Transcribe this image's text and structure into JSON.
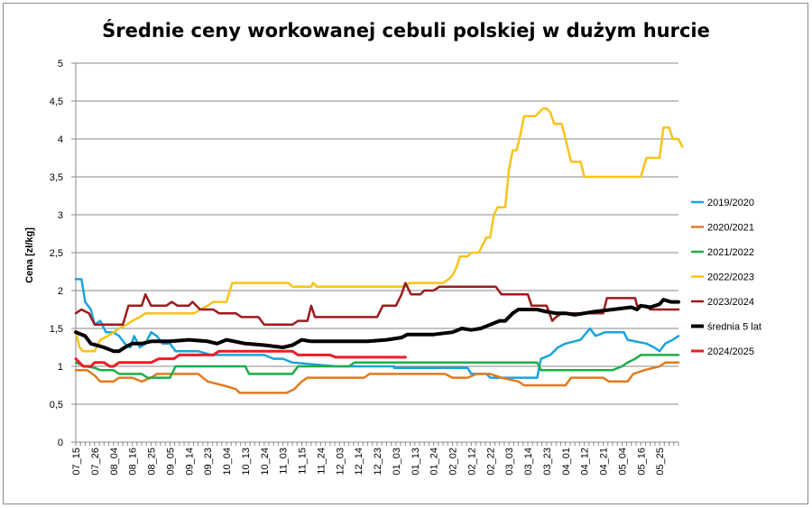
{
  "chart_data": {
    "type": "line",
    "title": "Średnie ceny workowanej cebuli polskiej w dużym hurcie",
    "ylabel": "Cena [zł/kg]",
    "xlabel": "",
    "ylim": [
      0,
      5
    ],
    "yticks": [
      "0",
      "0,5",
      "1",
      "1,5",
      "2",
      "2,5",
      "3",
      "3,5",
      "4",
      "4,5",
      "5"
    ],
    "grid": true,
    "legend_position": "right",
    "categories": [
      "07_15",
      "07_26",
      "08_04",
      "08_16",
      "08_25",
      "09_05",
      "09_14",
      "09_23",
      "10_04",
      "10_13",
      "10_24",
      "11_03",
      "11_15",
      "11_24",
      "12_03",
      "12_14",
      "12_23",
      "01_03",
      "01_13",
      "01_24",
      "02_02",
      "02_12",
      "02_22",
      "03_03",
      "03_14",
      "03_23",
      "04_01",
      "04_12",
      "04_21",
      "05_04",
      "05_16",
      "05_25"
    ],
    "series": [
      {
        "name": "2019/2020",
        "color": "#1aa3dc",
        "width": 2.5,
        "points": [
          [
            0,
            2.15
          ],
          [
            0.3,
            2.15
          ],
          [
            0.5,
            1.85
          ],
          [
            0.8,
            1.75
          ],
          [
            1.0,
            1.55
          ],
          [
            1.3,
            1.6
          ],
          [
            1.6,
            1.45
          ],
          [
            2.0,
            1.45
          ],
          [
            2.3,
            1.4
          ],
          [
            2.6,
            1.3
          ],
          [
            2.9,
            1.25
          ],
          [
            3.1,
            1.4
          ],
          [
            3.4,
            1.25
          ],
          [
            3.7,
            1.3
          ],
          [
            4.0,
            1.45
          ],
          [
            4.3,
            1.4
          ],
          [
            4.6,
            1.3
          ],
          [
            5.0,
            1.3
          ],
          [
            5.3,
            1.2
          ],
          [
            6.5,
            1.2
          ],
          [
            7.2,
            1.15
          ],
          [
            10.0,
            1.15
          ],
          [
            10.5,
            1.1
          ],
          [
            11.0,
            1.1
          ],
          [
            11.5,
            1.05
          ],
          [
            13.8,
            1.0
          ],
          [
            15.0,
            1.0
          ],
          [
            16.0,
            1.0
          ],
          [
            16.9,
            1.0
          ],
          [
            16.9,
            0.98
          ],
          [
            20.8,
            0.98
          ],
          [
            21.0,
            0.9
          ],
          [
            21.8,
            0.9
          ],
          [
            22.0,
            0.85
          ],
          [
            24.5,
            0.85
          ],
          [
            24.7,
            1.1
          ],
          [
            25.2,
            1.15
          ],
          [
            25.6,
            1.25
          ],
          [
            26.0,
            1.3
          ],
          [
            26.8,
            1.35
          ],
          [
            27.3,
            1.5
          ],
          [
            27.6,
            1.4
          ],
          [
            28.1,
            1.45
          ],
          [
            29.1,
            1.45
          ],
          [
            29.3,
            1.35
          ],
          [
            30.3,
            1.3
          ],
          [
            30.7,
            1.25
          ],
          [
            31.0,
            1.2
          ],
          [
            31.3,
            1.3
          ],
          [
            31.7,
            1.35
          ],
          [
            32.0,
            1.4
          ]
        ]
      },
      {
        "name": "2020/2021",
        "color": "#e07b20",
        "width": 2.5,
        "points": [
          [
            0,
            0.95
          ],
          [
            0.6,
            0.95
          ],
          [
            1.0,
            0.88
          ],
          [
            1.3,
            0.8
          ],
          [
            2.0,
            0.8
          ],
          [
            2.3,
            0.85
          ],
          [
            3.0,
            0.85
          ],
          [
            3.5,
            0.8
          ],
          [
            4.0,
            0.85
          ],
          [
            4.3,
            0.9
          ],
          [
            6.5,
            0.9
          ],
          [
            7.0,
            0.8
          ],
          [
            7.8,
            0.75
          ],
          [
            8.5,
            0.7
          ],
          [
            8.7,
            0.65
          ],
          [
            11.2,
            0.65
          ],
          [
            11.6,
            0.7
          ],
          [
            12.0,
            0.8
          ],
          [
            12.3,
            0.85
          ],
          [
            15.3,
            0.85
          ],
          [
            15.6,
            0.9
          ],
          [
            19.6,
            0.9
          ],
          [
            20.0,
            0.85
          ],
          [
            20.8,
            0.85
          ],
          [
            21.3,
            0.9
          ],
          [
            22.0,
            0.9
          ],
          [
            22.6,
            0.85
          ],
          [
            23.5,
            0.8
          ],
          [
            23.8,
            0.75
          ],
          [
            26.0,
            0.75
          ],
          [
            26.3,
            0.85
          ],
          [
            28.0,
            0.85
          ],
          [
            28.3,
            0.8
          ],
          [
            29.3,
            0.8
          ],
          [
            29.6,
            0.9
          ],
          [
            30.2,
            0.95
          ],
          [
            31.0,
            1.0
          ],
          [
            31.3,
            1.05
          ],
          [
            32.0,
            1.05
          ]
        ]
      },
      {
        "name": "2021/2022",
        "color": "#1cae48",
        "width": 2.5,
        "points": [
          [
            0,
            1.05
          ],
          [
            0.5,
            1.0
          ],
          [
            1.0,
            0.98
          ],
          [
            1.3,
            0.95
          ],
          [
            2.0,
            0.95
          ],
          [
            2.3,
            0.9
          ],
          [
            3.5,
            0.9
          ],
          [
            3.8,
            0.85
          ],
          [
            5.0,
            0.85
          ],
          [
            5.3,
            1.0
          ],
          [
            9.0,
            1.0
          ],
          [
            9.2,
            0.9
          ],
          [
            11.5,
            0.9
          ],
          [
            11.8,
            1.0
          ],
          [
            14.5,
            1.0
          ],
          [
            14.8,
            1.05
          ],
          [
            24.5,
            1.05
          ],
          [
            24.7,
            0.95
          ],
          [
            28.5,
            0.95
          ],
          [
            29.0,
            1.0
          ],
          [
            29.3,
            1.05
          ],
          [
            29.7,
            1.1
          ],
          [
            30.0,
            1.15
          ],
          [
            32.0,
            1.15
          ]
        ]
      },
      {
        "name": "2022/2023",
        "color": "#f7c31a",
        "width": 2.5,
        "points": [
          [
            0,
            1.45
          ],
          [
            0.2,
            1.25
          ],
          [
            0.4,
            1.2
          ],
          [
            1.0,
            1.2
          ],
          [
            1.3,
            1.35
          ],
          [
            1.7,
            1.4
          ],
          [
            2.0,
            1.45
          ],
          [
            2.3,
            1.5
          ],
          [
            2.7,
            1.55
          ],
          [
            3.0,
            1.6
          ],
          [
            3.4,
            1.65
          ],
          [
            3.7,
            1.7
          ],
          [
            6.3,
            1.7
          ],
          [
            6.6,
            1.75
          ],
          [
            7.0,
            1.8
          ],
          [
            7.3,
            1.85
          ],
          [
            8.0,
            1.85
          ],
          [
            8.3,
            2.1
          ],
          [
            11.3,
            2.1
          ],
          [
            11.5,
            2.05
          ],
          [
            12.5,
            2.05
          ],
          [
            12.6,
            2.1
          ],
          [
            12.8,
            2.05
          ],
          [
            17.5,
            2.05
          ],
          [
            17.7,
            2.1
          ],
          [
            19.5,
            2.1
          ],
          [
            19.8,
            2.15
          ],
          [
            20.0,
            2.2
          ],
          [
            20.2,
            2.3
          ],
          [
            20.4,
            2.45
          ],
          [
            20.8,
            2.45
          ],
          [
            21.0,
            2.5
          ],
          [
            21.4,
            2.5
          ],
          [
            21.6,
            2.6
          ],
          [
            21.8,
            2.7
          ],
          [
            22.0,
            2.7
          ],
          [
            22.2,
            3.0
          ],
          [
            22.4,
            3.1
          ],
          [
            22.8,
            3.1
          ],
          [
            23.0,
            3.6
          ],
          [
            23.2,
            3.85
          ],
          [
            23.4,
            3.85
          ],
          [
            23.6,
            4.05
          ],
          [
            23.8,
            4.3
          ],
          [
            24.4,
            4.3
          ],
          [
            24.6,
            4.35
          ],
          [
            24.8,
            4.4
          ],
          [
            25.0,
            4.4
          ],
          [
            25.2,
            4.35
          ],
          [
            25.4,
            4.2
          ],
          [
            25.8,
            4.2
          ],
          [
            26.0,
            4.0
          ],
          [
            26.3,
            3.7
          ],
          [
            26.8,
            3.7
          ],
          [
            27.0,
            3.5
          ],
          [
            30.0,
            3.5
          ],
          [
            30.3,
            3.75
          ],
          [
            31.0,
            3.75
          ],
          [
            31.2,
            4.15
          ],
          [
            31.5,
            4.15
          ],
          [
            31.7,
            4.0
          ],
          [
            32.0,
            4.0
          ],
          [
            32.2,
            3.9
          ]
        ]
      },
      {
        "name": "2023/2024",
        "color": "#9b1b1e",
        "width": 2.5,
        "points": [
          [
            0,
            1.7
          ],
          [
            0.3,
            1.75
          ],
          [
            0.7,
            1.7
          ],
          [
            1.0,
            1.55
          ],
          [
            2.0,
            1.55
          ],
          [
            2.5,
            1.55
          ],
          [
            2.8,
            1.8
          ],
          [
            3.5,
            1.8
          ],
          [
            3.7,
            1.95
          ],
          [
            4.0,
            1.8
          ],
          [
            4.8,
            1.8
          ],
          [
            5.1,
            1.85
          ],
          [
            5.4,
            1.8
          ],
          [
            6.0,
            1.8
          ],
          [
            6.2,
            1.85
          ],
          [
            6.6,
            1.75
          ],
          [
            7.3,
            1.75
          ],
          [
            7.6,
            1.7
          ],
          [
            8.5,
            1.7
          ],
          [
            8.8,
            1.65
          ],
          [
            9.7,
            1.65
          ],
          [
            10.0,
            1.55
          ],
          [
            11.5,
            1.55
          ],
          [
            11.8,
            1.6
          ],
          [
            12.3,
            1.6
          ],
          [
            12.5,
            1.8
          ],
          [
            12.7,
            1.65
          ],
          [
            16.0,
            1.65
          ],
          [
            16.3,
            1.8
          ],
          [
            17.0,
            1.8
          ],
          [
            17.3,
            1.95
          ],
          [
            17.5,
            2.1
          ],
          [
            17.8,
            1.95
          ],
          [
            18.3,
            1.95
          ],
          [
            18.5,
            2.0
          ],
          [
            19.0,
            2.0
          ],
          [
            19.3,
            2.05
          ],
          [
            22.3,
            2.05
          ],
          [
            22.6,
            1.95
          ],
          [
            24.0,
            1.95
          ],
          [
            24.2,
            1.8
          ],
          [
            25.0,
            1.8
          ],
          [
            25.3,
            1.6
          ],
          [
            25.5,
            1.65
          ],
          [
            25.8,
            1.7
          ],
          [
            28.0,
            1.7
          ],
          [
            28.2,
            1.9
          ],
          [
            29.7,
            1.9
          ],
          [
            29.8,
            1.8
          ],
          [
            30.3,
            1.8
          ],
          [
            30.5,
            1.75
          ],
          [
            32.0,
            1.75
          ]
        ]
      },
      {
        "name": "średnia 5 lat",
        "color": "#000000",
        "width": 4,
        "points": [
          [
            0,
            1.45
          ],
          [
            0.5,
            1.4
          ],
          [
            0.8,
            1.3
          ],
          [
            1.5,
            1.25
          ],
          [
            2.0,
            1.2
          ],
          [
            2.3,
            1.2
          ],
          [
            2.6,
            1.25
          ],
          [
            3.0,
            1.3
          ],
          [
            3.5,
            1.3
          ],
          [
            4.0,
            1.33
          ],
          [
            5.0,
            1.33
          ],
          [
            6.0,
            1.35
          ],
          [
            7.0,
            1.33
          ],
          [
            7.5,
            1.3
          ],
          [
            8.0,
            1.35
          ],
          [
            9.0,
            1.3
          ],
          [
            10.0,
            1.28
          ],
          [
            11.0,
            1.25
          ],
          [
            11.5,
            1.28
          ],
          [
            12.0,
            1.35
          ],
          [
            12.5,
            1.33
          ],
          [
            13.5,
            1.33
          ],
          [
            14.5,
            1.33
          ],
          [
            15.5,
            1.33
          ],
          [
            16.5,
            1.35
          ],
          [
            17.3,
            1.38
          ],
          [
            17.6,
            1.42
          ],
          [
            18.0,
            1.42
          ],
          [
            19.0,
            1.42
          ],
          [
            20.0,
            1.45
          ],
          [
            20.5,
            1.5
          ],
          [
            21.0,
            1.48
          ],
          [
            21.5,
            1.5
          ],
          [
            22.0,
            1.55
          ],
          [
            22.5,
            1.6
          ],
          [
            22.8,
            1.6
          ],
          [
            23.2,
            1.7
          ],
          [
            23.5,
            1.75
          ],
          [
            24.0,
            1.75
          ],
          [
            24.5,
            1.75
          ],
          [
            25.0,
            1.72
          ],
          [
            25.5,
            1.7
          ],
          [
            26.0,
            1.7
          ],
          [
            26.5,
            1.68
          ],
          [
            27.0,
            1.7
          ],
          [
            27.5,
            1.72
          ],
          [
            28.5,
            1.75
          ],
          [
            29.5,
            1.78
          ],
          [
            29.8,
            1.75
          ],
          [
            30.0,
            1.8
          ],
          [
            30.5,
            1.78
          ],
          [
            31.0,
            1.82
          ],
          [
            31.2,
            1.88
          ],
          [
            31.6,
            1.85
          ],
          [
            32.0,
            1.85
          ]
        ]
      },
      {
        "name": "2024/2025",
        "color": "#ee1c24",
        "width": 3,
        "points": [
          [
            0,
            1.1
          ],
          [
            0.4,
            1.0
          ],
          [
            0.8,
            1.0
          ],
          [
            1.0,
            1.05
          ],
          [
            1.5,
            1.05
          ],
          [
            1.8,
            1.0
          ],
          [
            2.0,
            1.0
          ],
          [
            2.3,
            1.05
          ],
          [
            4.0,
            1.05
          ],
          [
            4.4,
            1.1
          ],
          [
            5.2,
            1.1
          ],
          [
            5.5,
            1.15
          ],
          [
            7.3,
            1.15
          ],
          [
            7.6,
            1.2
          ],
          [
            11.5,
            1.2
          ],
          [
            11.8,
            1.15
          ],
          [
            13.5,
            1.15
          ],
          [
            13.8,
            1.12
          ],
          [
            17.5,
            1.12
          ]
        ]
      }
    ]
  }
}
